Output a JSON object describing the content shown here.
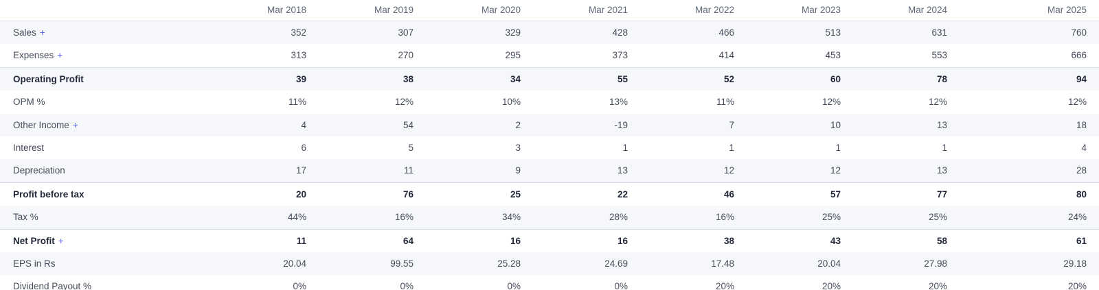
{
  "table": {
    "expand_symbol": "+",
    "columns": [
      "Mar 2018",
      "Mar 2019",
      "Mar 2020",
      "Mar 2021",
      "Mar 2022",
      "Mar 2023",
      "Mar 2024",
      "Mar 2025"
    ],
    "rows": [
      {
        "label": "Sales",
        "expandable": true,
        "bold": false,
        "values": [
          "352",
          "307",
          "329",
          "428",
          "466",
          "513",
          "631",
          "760"
        ]
      },
      {
        "label": "Expenses",
        "expandable": true,
        "bold": false,
        "values": [
          "313",
          "270",
          "295",
          "373",
          "414",
          "453",
          "553",
          "666"
        ]
      },
      {
        "label": "Operating Profit",
        "expandable": false,
        "bold": true,
        "values": [
          "39",
          "38",
          "34",
          "55",
          "52",
          "60",
          "78",
          "94"
        ]
      },
      {
        "label": "OPM %",
        "expandable": false,
        "bold": false,
        "values": [
          "11%",
          "12%",
          "10%",
          "13%",
          "11%",
          "12%",
          "12%",
          "12%"
        ]
      },
      {
        "label": "Other Income",
        "expandable": true,
        "bold": false,
        "values": [
          "4",
          "54",
          "2",
          "-19",
          "7",
          "10",
          "13",
          "18"
        ]
      },
      {
        "label": "Interest",
        "expandable": false,
        "bold": false,
        "values": [
          "6",
          "5",
          "3",
          "1",
          "1",
          "1",
          "1",
          "4"
        ]
      },
      {
        "label": "Depreciation",
        "expandable": false,
        "bold": false,
        "values": [
          "17",
          "11",
          "9",
          "13",
          "12",
          "12",
          "13",
          "28"
        ]
      },
      {
        "label": "Profit before tax",
        "expandable": false,
        "bold": true,
        "values": [
          "20",
          "76",
          "25",
          "22",
          "46",
          "57",
          "77",
          "80"
        ]
      },
      {
        "label": "Tax %",
        "expandable": false,
        "bold": false,
        "values": [
          "44%",
          "16%",
          "34%",
          "28%",
          "16%",
          "25%",
          "25%",
          "24%"
        ]
      },
      {
        "label": "Net Profit",
        "expandable": true,
        "bold": true,
        "values": [
          "11",
          "64",
          "16",
          "16",
          "38",
          "43",
          "58",
          "61"
        ]
      },
      {
        "label": "EPS in Rs",
        "expandable": false,
        "bold": false,
        "values": [
          "20.04",
          "99.55",
          "25.28",
          "24.69",
          "17.48",
          "20.04",
          "27.98",
          "29.18"
        ]
      },
      {
        "label": "Dividend Payout %",
        "expandable": false,
        "bold": false,
        "values": [
          "0%",
          "0%",
          "0%",
          "0%",
          "20%",
          "20%",
          "20%",
          "20%"
        ]
      }
    ],
    "colors": {
      "accent_plus": "#5b68f0",
      "stripe": "#f6f7fb",
      "border": "#d7dde9",
      "header_text": "#5e6876",
      "body_text": "#454c59",
      "bold_text": "#23293a"
    }
  }
}
